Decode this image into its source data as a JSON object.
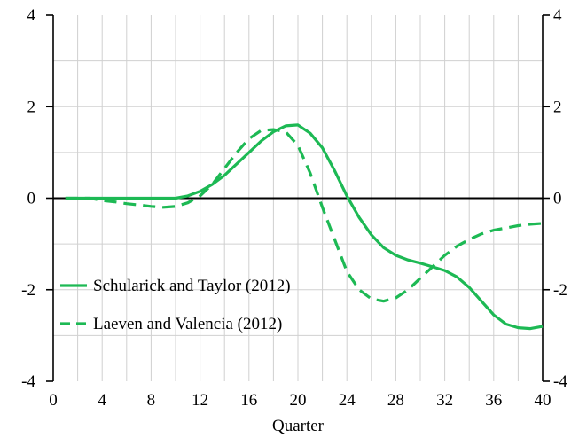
{
  "chart_data": {
    "type": "line",
    "xlabel": "Quarter",
    "ylabel": "",
    "xlim": [
      0,
      40
    ],
    "ylim": [
      -4,
      4
    ],
    "x_ticks": [
      "0",
      "4",
      "8",
      "12",
      "16",
      "20",
      "24",
      "28",
      "32",
      "36",
      "40"
    ],
    "y_ticks_left": [
      "4",
      "2",
      "0",
      "-2",
      "-4"
    ],
    "y_ticks_right": [
      "4",
      "2",
      "0",
      "-2",
      "-4"
    ],
    "grid": true,
    "legend_position": "lower-left",
    "line_color": "#1db954",
    "series": [
      {
        "name": "Schularick and Taylor (2012)",
        "style": "solid",
        "x": [
          1,
          2,
          3,
          4,
          5,
          6,
          7,
          8,
          9,
          10,
          11,
          12,
          13,
          14,
          15,
          16,
          17,
          18,
          19,
          20,
          21,
          22,
          23,
          24,
          25,
          26,
          27,
          28,
          29,
          30,
          31,
          32,
          33,
          34,
          35,
          36,
          37,
          38,
          39,
          40
        ],
        "y": [
          0,
          0,
          0,
          0,
          0,
          0,
          0,
          0,
          0,
          0,
          0.05,
          0.15,
          0.3,
          0.5,
          0.75,
          1.0,
          1.25,
          1.45,
          1.58,
          1.6,
          1.42,
          1.1,
          0.6,
          0.05,
          -0.42,
          -0.8,
          -1.08,
          -1.25,
          -1.35,
          -1.42,
          -1.5,
          -1.58,
          -1.72,
          -1.95,
          -2.25,
          -2.55,
          -2.75,
          -2.83,
          -2.85,
          -2.8
        ]
      },
      {
        "name": "Laeven and Valencia (2012)",
        "style": "dashed",
        "x": [
          1,
          2,
          3,
          4,
          5,
          6,
          7,
          8,
          9,
          10,
          11,
          12,
          13,
          14,
          15,
          16,
          17,
          18,
          19,
          20,
          21,
          22,
          23,
          24,
          25,
          26,
          27,
          28,
          29,
          30,
          31,
          32,
          33,
          34,
          35,
          36,
          37,
          38,
          39,
          40
        ],
        "y": [
          0,
          0,
          0,
          -0.05,
          -0.08,
          -0.12,
          -0.15,
          -0.18,
          -0.2,
          -0.18,
          -0.1,
          0.05,
          0.3,
          0.65,
          1.0,
          1.3,
          1.48,
          1.5,
          1.45,
          1.15,
          0.55,
          -0.2,
          -0.9,
          -1.6,
          -2.0,
          -2.2,
          -2.25,
          -2.18,
          -2.0,
          -1.75,
          -1.5,
          -1.25,
          -1.05,
          -0.9,
          -0.78,
          -0.7,
          -0.65,
          -0.6,
          -0.57,
          -0.55
        ]
      }
    ]
  }
}
